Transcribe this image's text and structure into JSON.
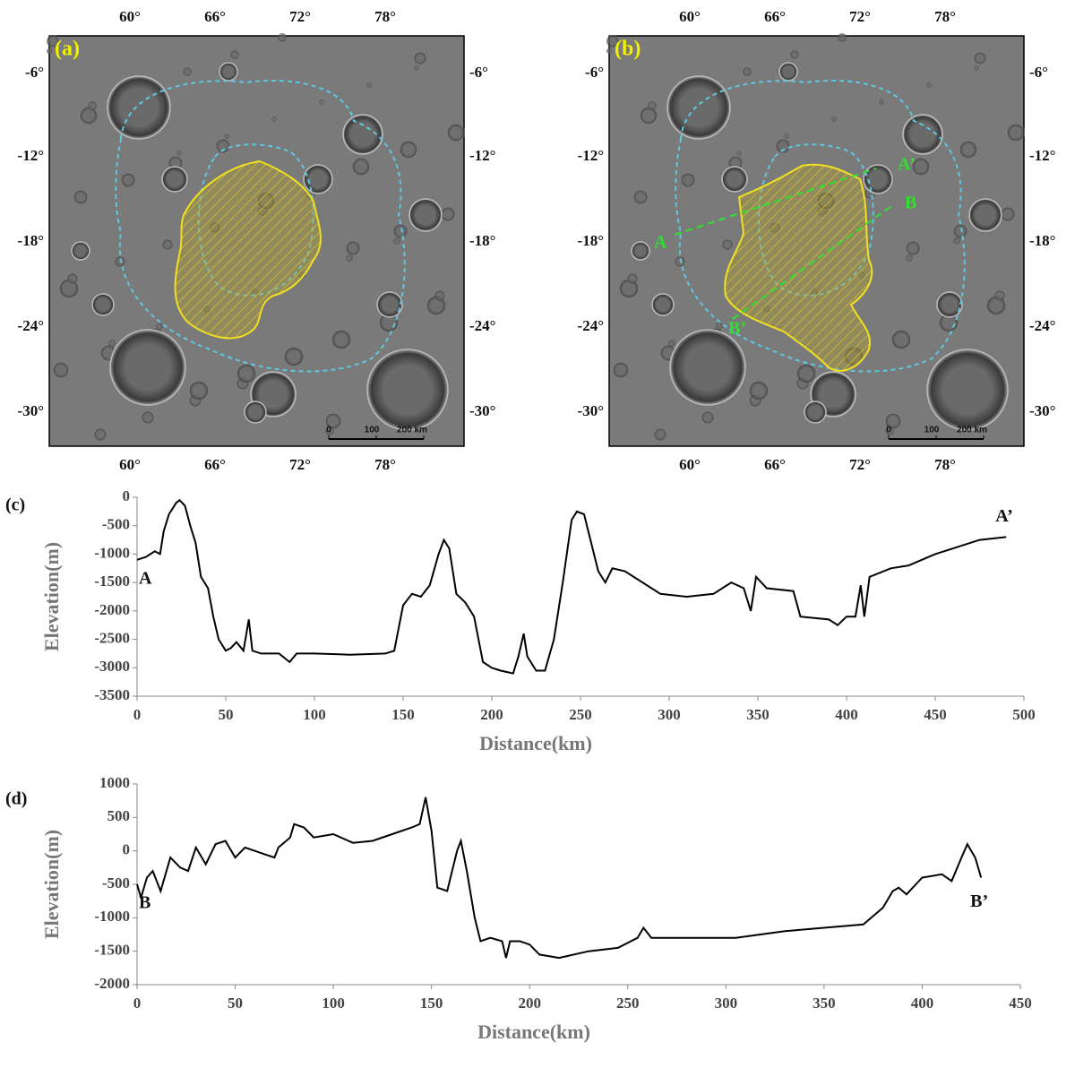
{
  "maps": [
    {
      "label": "(a)",
      "lon_ticks": [
        "60°",
        "66°",
        "72°",
        "78°"
      ],
      "lat_ticks": [
        "-6°",
        "-12°",
        "-18°",
        "-24°",
        "-30°"
      ],
      "scale_labels": [
        "0",
        "100",
        "200 km"
      ]
    },
    {
      "label": "(b)",
      "lon_ticks": [
        "60°",
        "66°",
        "72°",
        "78°"
      ],
      "lat_ticks": [
        "-6°",
        "-12°",
        "-18°",
        "-24°",
        "-30°"
      ],
      "scale_labels": [
        "0",
        "100",
        "200 km"
      ],
      "profile_labels": [
        "A",
        "A’",
        "B",
        "B’"
      ]
    }
  ],
  "chart_data": [
    {
      "type": "line",
      "label": "(c)",
      "xlabel": "Distance(km)",
      "ylabel": "Elevation(m)",
      "start_label": "A",
      "end_label": "A’",
      "color": "#000000",
      "x": [
        0,
        5,
        10,
        13,
        15,
        18,
        22,
        24,
        27,
        30,
        33,
        36,
        40,
        43,
        46,
        50,
        53,
        56,
        60,
        63,
        65,
        70,
        80,
        86,
        90,
        100,
        120,
        140,
        145,
        150,
        155,
        160,
        165,
        170,
        173,
        176,
        180,
        185,
        190,
        195,
        200,
        205,
        212,
        215,
        218,
        220,
        225,
        230,
        235,
        240,
        245,
        248,
        252,
        256,
        260,
        264,
        268,
        275,
        285,
        295,
        310,
        325,
        335,
        342,
        346,
        349,
        355,
        370,
        374,
        390,
        395,
        400,
        405,
        408,
        410,
        413,
        425,
        435,
        450,
        465,
        475,
        490
      ],
      "values": [
        -1100,
        -1050,
        -950,
        -1000,
        -600,
        -300,
        -100,
        -50,
        -150,
        -500,
        -800,
        -1400,
        -1600,
        -2100,
        -2500,
        -2700,
        -2650,
        -2550,
        -2700,
        -2150,
        -2700,
        -2750,
        -2750,
        -2900,
        -2750,
        -2750,
        -2770,
        -2750,
        -2700,
        -1900,
        -1700,
        -1750,
        -1550,
        -1000,
        -750,
        -900,
        -1700,
        -1850,
        -2100,
        -2900,
        -3000,
        -3050,
        -3100,
        -2800,
        -2400,
        -2800,
        -3050,
        -3050,
        -2500,
        -1500,
        -400,
        -250,
        -300,
        -800,
        -1300,
        -1500,
        -1250,
        -1300,
        -1500,
        -1700,
        -1750,
        -1700,
        -1500,
        -1600,
        -2000,
        -1400,
        -1600,
        -1650,
        -2100,
        -2150,
        -2250,
        -2100,
        -2100,
        -1550,
        -2100,
        -1400,
        -1250,
        -1200,
        -1000,
        -850,
        -750,
        -700
      ],
      "xlim": [
        0,
        500
      ],
      "xticks": [
        0,
        50,
        100,
        150,
        200,
        250,
        300,
        350,
        400,
        450,
        500
      ],
      "ylim": [
        -3500,
        0
      ],
      "yticks": [
        -3500,
        -3000,
        -2500,
        -2000,
        -1500,
        -1000,
        -500,
        0
      ]
    },
    {
      "type": "line",
      "label": "(d)",
      "xlabel": "Distance(km)",
      "ylabel": "Elevation(m)",
      "start_label": "B",
      "end_label": "B’",
      "color": "#000000",
      "x": [
        0,
        2,
        5,
        8,
        12,
        17,
        22,
        26,
        30,
        35,
        40,
        45,
        50,
        55,
        60,
        65,
        70,
        72,
        78,
        80,
        85,
        90,
        100,
        110,
        120,
        130,
        140,
        144,
        147,
        150,
        153,
        158,
        163,
        165,
        168,
        172,
        175,
        180,
        186,
        188,
        190,
        195,
        200,
        205,
        215,
        230,
        245,
        255,
        258,
        262,
        280,
        305,
        330,
        350,
        370,
        380,
        385,
        388,
        392,
        400,
        410,
        415,
        420,
        423,
        427,
        430
      ],
      "values": [
        -500,
        -700,
        -400,
        -300,
        -600,
        -100,
        -250,
        -300,
        50,
        -200,
        100,
        150,
        -100,
        50,
        0,
        -50,
        -100,
        50,
        200,
        400,
        350,
        200,
        250,
        120,
        150,
        250,
        350,
        400,
        800,
        300,
        -550,
        -600,
        0,
        150,
        -300,
        -1000,
        -1350,
        -1300,
        -1350,
        -1600,
        -1350,
        -1350,
        -1400,
        -1550,
        -1600,
        -1500,
        -1450,
        -1300,
        -1150,
        -1300,
        -1300,
        -1300,
        -1200,
        -1150,
        -1100,
        -850,
        -600,
        -550,
        -650,
        -400,
        -350,
        -450,
        -100,
        100,
        -100,
        -400
      ],
      "xlim": [
        0,
        450
      ],
      "xticks": [
        0,
        50,
        100,
        150,
        200,
        250,
        300,
        350,
        400,
        450
      ],
      "ylim": [
        -2000,
        1000
      ],
      "yticks": [
        -2000,
        -1500,
        -1000,
        -500,
        0,
        500,
        1000
      ]
    }
  ]
}
